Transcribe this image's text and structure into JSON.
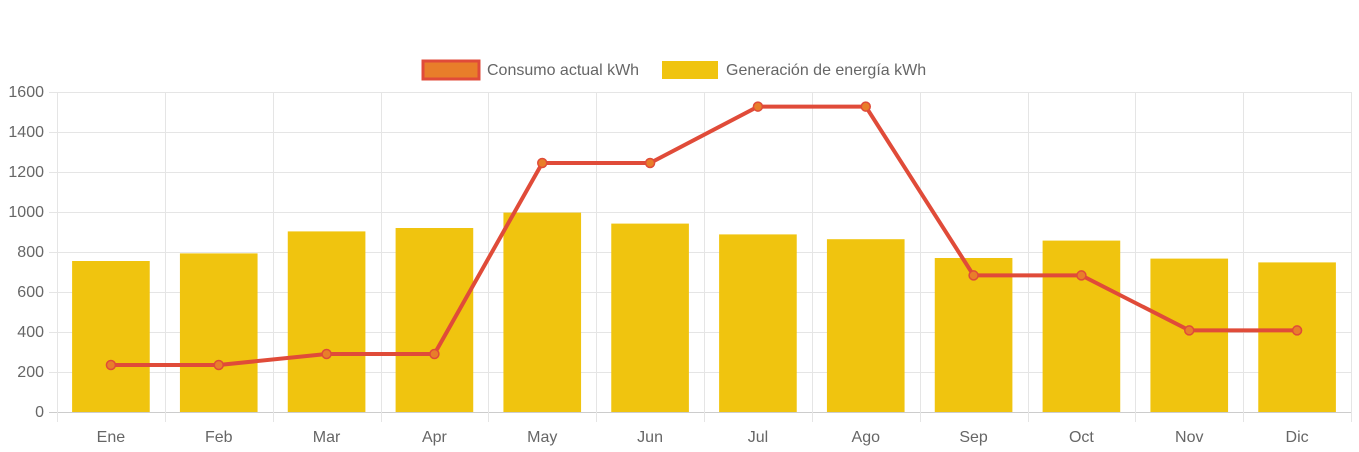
{
  "chart_data": {
    "type": "bar",
    "categories": [
      "Ene",
      "Feb",
      "Mar",
      "Apr",
      "May",
      "Jun",
      "Jul",
      "Ago",
      "Sep",
      "Oct",
      "Nov",
      "Dic"
    ],
    "series": [
      {
        "name": "Consumo actual kWh",
        "type": "line",
        "values": [
          235,
          235,
          290,
          290,
          1245,
          1245,
          1527,
          1527,
          683,
          683,
          408,
          408
        ],
        "color": "#e04b39",
        "point_color": "#e87e2a"
      },
      {
        "name": "Generación de energía kWh",
        "type": "bar",
        "values": [
          755,
          793,
          903,
          920,
          997,
          942,
          888,
          864,
          770,
          857,
          767,
          748
        ],
        "color": "#f0c40f"
      }
    ],
    "yticks": [
      0,
      200,
      400,
      600,
      800,
      1000,
      1200,
      1400,
      1600
    ],
    "ylim": [
      0,
      1600
    ],
    "grid": true,
    "legend_position": "top-center"
  }
}
